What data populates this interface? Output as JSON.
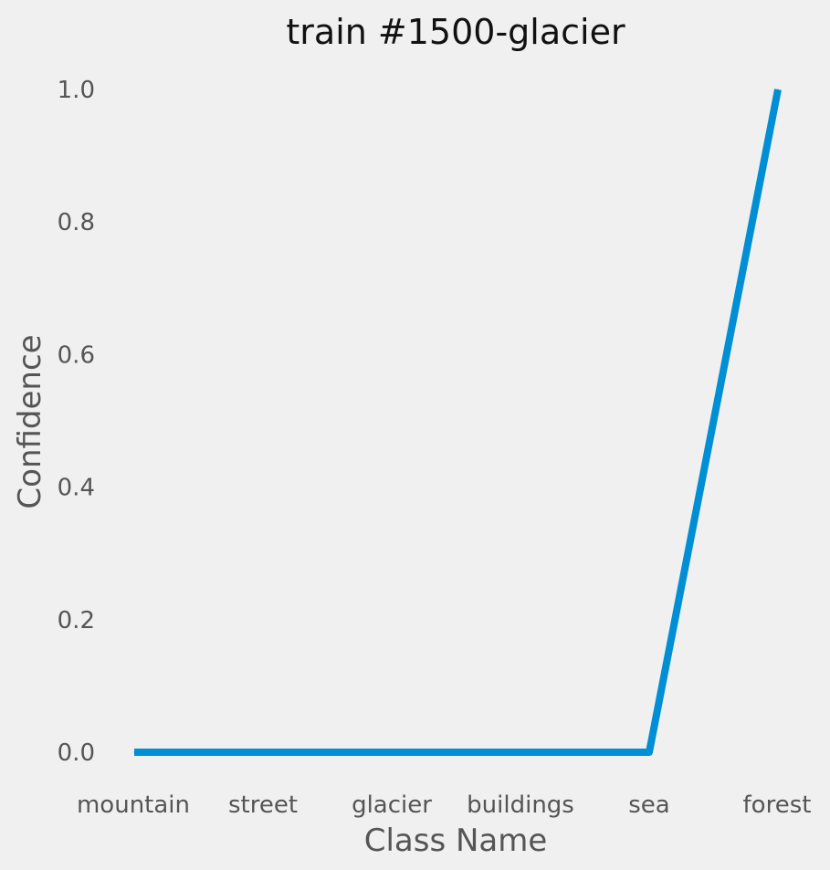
{
  "chart_data": {
    "type": "line",
    "title": "train #1500-glacier",
    "xlabel": "Class Name",
    "ylabel": "Confidence",
    "categories": [
      "mountain",
      "street",
      "glacier",
      "buildings",
      "sea",
      "forest"
    ],
    "series": [
      {
        "values": [
          0.0,
          0.0,
          0.0,
          0.0,
          0.0,
          1.0
        ]
      }
    ],
    "ylim": [
      0.0,
      1.0
    ],
    "yticks": [
      "0.0",
      "0.2",
      "0.4",
      "0.6",
      "0.8",
      "1.0"
    ],
    "grid": false,
    "legend": "none",
    "line_color": "#008fd5",
    "background_color": "#f0f0f0"
  }
}
